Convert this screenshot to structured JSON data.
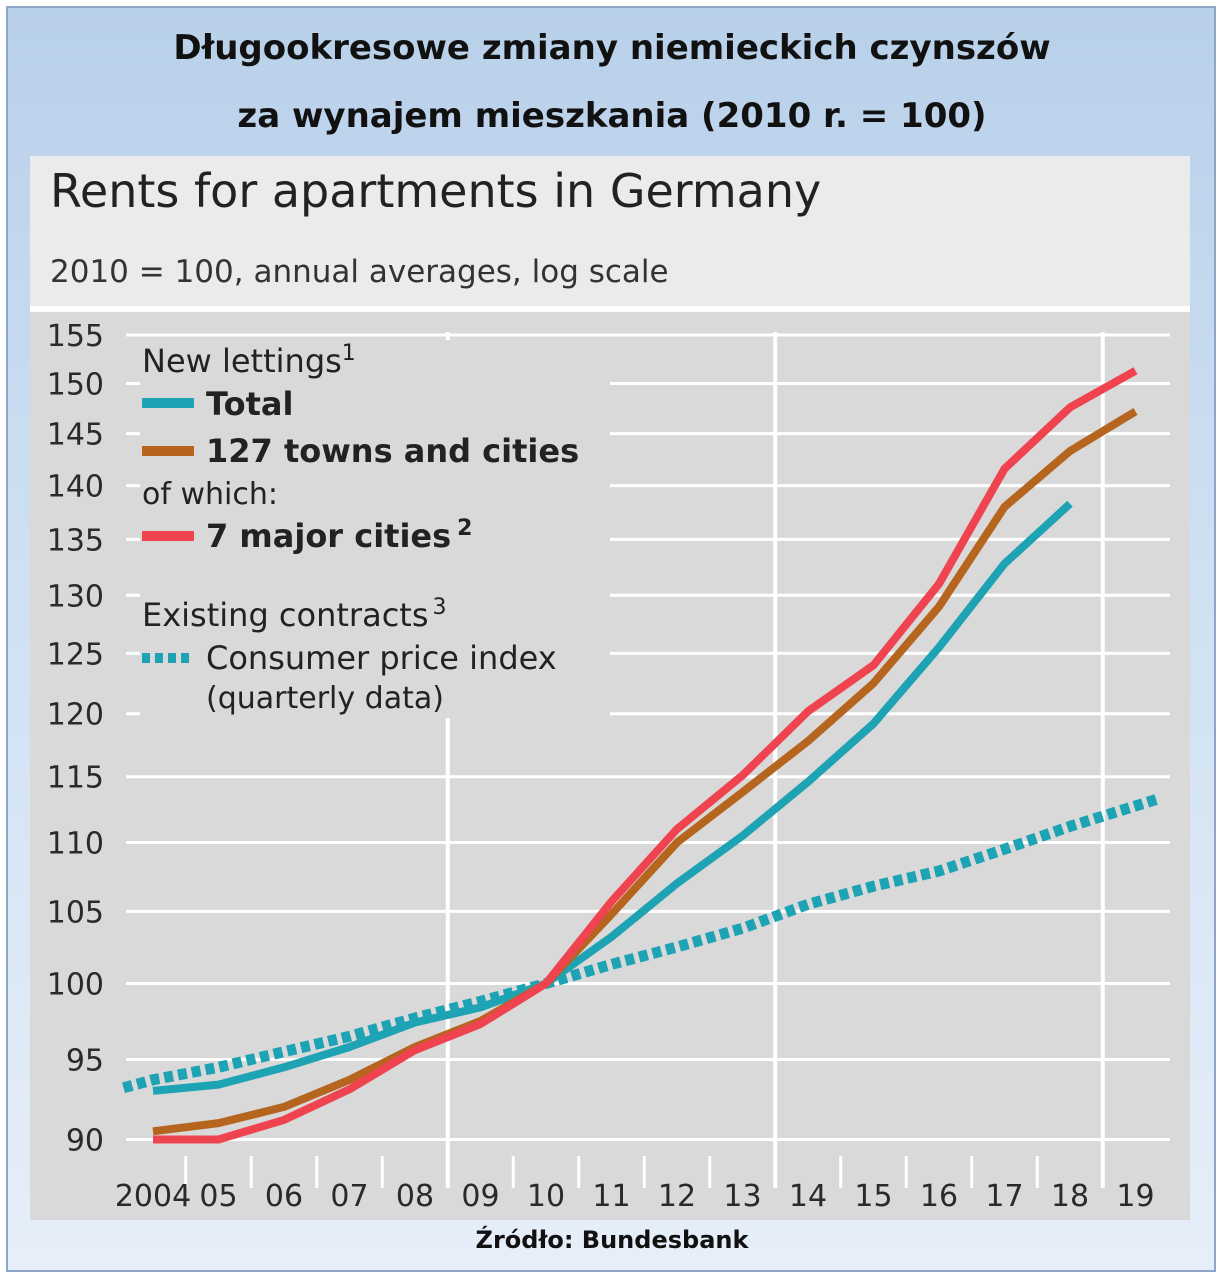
{
  "header": {
    "title_line1": "Długookresowe zmiany niemieckich czynszów",
    "title_line2": "za wynajem mieszkania (2010 r. = 100)"
  },
  "footer": {
    "source": "Źródło: Bundesbank"
  },
  "chart_data": {
    "type": "line",
    "title": "Rents for apartments in Germany",
    "subtitle": "2010 = 100, annual averages, log scale",
    "scale": "log",
    "ylim": [
      89,
      157
    ],
    "y_ticks": [
      155,
      150,
      145,
      140,
      135,
      130,
      125,
      120,
      115,
      110,
      105,
      100,
      95,
      90
    ],
    "x_tick_labels": [
      "2004",
      "05",
      "06",
      "07",
      "08",
      "09",
      "10",
      "11",
      "12",
      "13",
      "14",
      "15",
      "16",
      "17",
      "18",
      "19"
    ],
    "x_years": [
      2004,
      2005,
      2006,
      2007,
      2008,
      2009,
      2010,
      2011,
      2012,
      2013,
      2014,
      2015,
      2016,
      2017,
      2018,
      2019
    ],
    "colors": {
      "total": "#1ea3b4",
      "towns": "#b5651d",
      "major": "#ef4350",
      "cpi": "#1ea3b4"
    },
    "legend": {
      "heading_new": "New lettings",
      "heading_new_sup": "1",
      "total": "Total",
      "towns": "127 towns and cities",
      "of_which": "of which:",
      "major": "7 major cities",
      "major_sup": "2",
      "heading_existing": "Existing contracts",
      "heading_existing_sup": "3",
      "cpi": "Consumer price index",
      "cpi_note": "(quarterly data)"
    },
    "series": [
      {
        "name": "Total",
        "key": "total",
        "style": "solid",
        "x": [
          2004,
          2005,
          2006,
          2007,
          2008,
          2009,
          2010,
          2011,
          2012,
          2013,
          2014,
          2015,
          2016,
          2017,
          2018
        ],
        "values": [
          93.0,
          93.4,
          94.5,
          95.8,
          97.4,
          98.4,
          100.0,
          103.2,
          107.0,
          110.5,
          114.6,
          119.2,
          125.5,
          132.8,
          138.3
        ]
      },
      {
        "name": "127 towns and cities",
        "key": "towns",
        "style": "solid",
        "x": [
          2004,
          2005,
          2006,
          2007,
          2008,
          2009,
          2010,
          2011,
          2012,
          2013,
          2014,
          2015,
          2016,
          2017,
          2018,
          2019
        ],
        "values": [
          90.5,
          91.0,
          92.0,
          93.7,
          95.8,
          97.5,
          100.0,
          104.8,
          110.0,
          113.8,
          117.8,
          122.5,
          129.0,
          138.0,
          143.3,
          147.2
        ]
      },
      {
        "name": "7 major cities",
        "key": "major",
        "style": "solid",
        "x": [
          2004,
          2005,
          2006,
          2007,
          2008,
          2009,
          2010,
          2011,
          2012,
          2013,
          2014,
          2015,
          2016,
          2017,
          2018,
          2019
        ],
        "values": [
          90.0,
          90.0,
          91.2,
          93.1,
          95.6,
          97.3,
          100.0,
          105.7,
          111.0,
          115.1,
          120.2,
          124.0,
          131.0,
          141.6,
          147.6,
          151.3
        ]
      },
      {
        "name": "Consumer price index",
        "key": "cpi",
        "style": "dotted",
        "x": [
          2003.55,
          2004.0,
          2005.0,
          2006.0,
          2007.0,
          2008.0,
          2009.0,
          2010.0,
          2011.0,
          2012.0,
          2013.0,
          2014.0,
          2015.0,
          2016.0,
          2017.0,
          2018.0,
          2019.35
        ],
        "values": [
          93.2,
          93.7,
          94.5,
          95.5,
          96.5,
          97.7,
          98.8,
          100.0,
          101.3,
          102.5,
          103.8,
          105.5,
          106.8,
          107.9,
          109.5,
          111.2,
          113.3
        ]
      }
    ]
  }
}
